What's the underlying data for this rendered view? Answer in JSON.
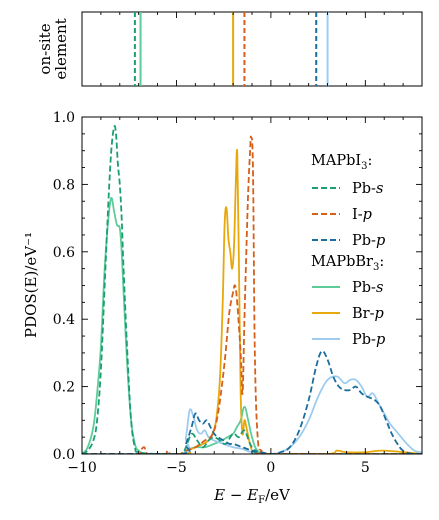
{
  "chart_data": {
    "type": "line",
    "colors": {
      "mapi_pbs": "#1a9e74",
      "mapi_ip": "#d4601b",
      "mapi_pbp": "#1b6d9e",
      "mapb_pbs": "#5dcc98",
      "mapb_brp": "#e8a70c",
      "mapb_pbp": "#9dccf0"
    },
    "top_panel": {
      "ylabel_line1": "on-site",
      "ylabel_line2": "element",
      "xlim": [
        -10,
        8
      ],
      "lines": [
        {
          "x": -7.2,
          "style": "dashed",
          "color_key": "mapi_pbs"
        },
        {
          "x": -6.9,
          "style": "solid",
          "color_key": "mapb_pbs"
        },
        {
          "x": -2.0,
          "style": "solid",
          "color_key": "mapb_brp"
        },
        {
          "x": -1.4,
          "style": "dashed",
          "color_key": "mapi_ip"
        },
        {
          "x": 2.4,
          "style": "dashed",
          "color_key": "mapi_pbp"
        },
        {
          "x": 3.0,
          "style": "solid",
          "color_key": "mapb_pbp"
        }
      ]
    },
    "main_panel": {
      "xlabel": "E − E_F/eV",
      "ylabel": "PDOS(E)/eV⁻¹",
      "xlim": [
        -10,
        8
      ],
      "ylim": [
        0,
        1.0
      ],
      "xticks": [
        -10,
        -5,
        0,
        5
      ],
      "yticks": [
        0.0,
        0.2,
        0.4,
        0.6,
        0.8,
        1.0
      ],
      "xtick_labels": [
        "−10",
        "−5",
        "0",
        "5"
      ],
      "ytick_labels": [
        "0.0",
        "0.2",
        "0.4",
        "0.6",
        "0.8",
        "1.0"
      ]
    },
    "legend": {
      "group1_title": "MAPbI",
      "group1_sub": "3",
      "group2_title": "MAPbBr",
      "group2_sub": "3",
      "items1": [
        {
          "label_main": "Pb-",
          "label_it": "s",
          "style": "dashed",
          "color_key": "mapi_pbs"
        },
        {
          "label_main": "I-",
          "label_it": "p",
          "style": "dashed",
          "color_key": "mapi_ip"
        },
        {
          "label_main": "Pb-",
          "label_it": "p",
          "style": "dashed",
          "color_key": "mapi_pbp"
        }
      ],
      "items2": [
        {
          "label_main": "Pb-",
          "label_it": "s",
          "style": "solid",
          "color_key": "mapb_pbs"
        },
        {
          "label_main": "Br-",
          "label_it": "p",
          "style": "solid",
          "color_key": "mapb_brp"
        },
        {
          "label_main": "Pb-",
          "label_it": "p",
          "style": "solid",
          "color_key": "mapb_pbp"
        }
      ]
    },
    "series": [
      {
        "name": "MAPbI3 Pb-s",
        "style": "dashed",
        "color_key": "mapi_pbs",
        "points": [
          [
            -10,
            0
          ],
          [
            -9.7,
            0.01
          ],
          [
            -9.4,
            0.04
          ],
          [
            -9.2,
            0.1
          ],
          [
            -9.0,
            0.25
          ],
          [
            -8.8,
            0.5
          ],
          [
            -8.6,
            0.75
          ],
          [
            -8.45,
            0.9
          ],
          [
            -8.3,
            0.97
          ],
          [
            -8.2,
            0.95
          ],
          [
            -8.1,
            0.86
          ],
          [
            -8.0,
            0.8
          ],
          [
            -7.9,
            0.7
          ],
          [
            -7.8,
            0.55
          ],
          [
            -7.6,
            0.3
          ],
          [
            -7.4,
            0.1
          ],
          [
            -7.2,
            0.02
          ],
          [
            -7.0,
            0.005
          ],
          [
            -6.0,
            0
          ],
          [
            -4.8,
            0
          ],
          [
            -4.5,
            0.02
          ],
          [
            -4.2,
            0.06
          ],
          [
            -3.9,
            0.04
          ],
          [
            -3.6,
            0.02
          ],
          [
            -3.3,
            0.04
          ],
          [
            -3.0,
            0.05
          ],
          [
            -2.7,
            0.04
          ],
          [
            -2.4,
            0.03
          ],
          [
            -2.0,
            0.06
          ],
          [
            -1.7,
            0.05
          ],
          [
            -1.4,
            0.07
          ],
          [
            -1.1,
            0.03
          ],
          [
            -0.8,
            0.01
          ],
          [
            0,
            0
          ],
          [
            8,
            0
          ]
        ]
      },
      {
        "name": "MAPbI3 I-p",
        "style": "dashed",
        "color_key": "mapi_ip",
        "points": [
          [
            -10,
            0
          ],
          [
            -8,
            0
          ],
          [
            -7.0,
            0
          ],
          [
            -6.9,
            0.01
          ],
          [
            -6.7,
            0.02
          ],
          [
            -6.5,
            0
          ],
          [
            -5.6,
            0
          ],
          [
            -5.5,
            0.01
          ],
          [
            -5.3,
            0
          ],
          [
            -4.8,
            0
          ],
          [
            -4.5,
            0.01
          ],
          [
            -4.0,
            0.02
          ],
          [
            -3.5,
            0.04
          ],
          [
            -3.2,
            0.05
          ],
          [
            -3.0,
            0.07
          ],
          [
            -2.8,
            0.12
          ],
          [
            -2.6,
            0.2
          ],
          [
            -2.4,
            0.3
          ],
          [
            -2.2,
            0.42
          ],
          [
            -2.0,
            0.48
          ],
          [
            -1.9,
            0.5
          ],
          [
            -1.8,
            0.46
          ],
          [
            -1.6,
            0.3
          ],
          [
            -1.5,
            0.18
          ],
          [
            -1.4,
            0.4
          ],
          [
            -1.3,
            0.6
          ],
          [
            -1.2,
            0.78
          ],
          [
            -1.1,
            0.9
          ],
          [
            -1.05,
            0.94
          ],
          [
            -0.95,
            0.85
          ],
          [
            -0.85,
            0.3
          ],
          [
            -0.7,
            0.05
          ],
          [
            -0.5,
            0.01
          ],
          [
            0,
            0
          ],
          [
            8,
            0
          ]
        ]
      },
      {
        "name": "MAPbI3 Pb-p",
        "style": "dashed",
        "color_key": "mapi_pbp",
        "points": [
          [
            -10,
            0
          ],
          [
            -4.8,
            0
          ],
          [
            -4.5,
            0.03
          ],
          [
            -4.2,
            0.08
          ],
          [
            -4.0,
            0.12
          ],
          [
            -3.8,
            0.1
          ],
          [
            -3.6,
            0.09
          ],
          [
            -3.4,
            0.1
          ],
          [
            -3.2,
            0.08
          ],
          [
            -3.0,
            0.06
          ],
          [
            -2.8,
            0.05
          ],
          [
            -2.5,
            0.04
          ],
          [
            -2.2,
            0.03
          ],
          [
            -2.0,
            0.03
          ],
          [
            -1.5,
            0.02
          ],
          [
            -1.0,
            0.01
          ],
          [
            -0.5,
            0.005
          ],
          [
            0,
            0
          ],
          [
            0.5,
            0.005
          ],
          [
            1.0,
            0.02
          ],
          [
            1.5,
            0.07
          ],
          [
            2.0,
            0.16
          ],
          [
            2.4,
            0.26
          ],
          [
            2.7,
            0.305
          ],
          [
            3.0,
            0.28
          ],
          [
            3.3,
            0.23
          ],
          [
            3.6,
            0.2
          ],
          [
            3.9,
            0.19
          ],
          [
            4.2,
            0.19
          ],
          [
            4.5,
            0.2
          ],
          [
            4.8,
            0.18
          ],
          [
            5.1,
            0.17
          ],
          [
            5.5,
            0.16
          ],
          [
            5.8,
            0.14
          ],
          [
            6.1,
            0.1
          ],
          [
            6.4,
            0.06
          ],
          [
            6.7,
            0.03
          ],
          [
            7.0,
            0.01
          ],
          [
            7.5,
            0
          ],
          [
            8,
            0
          ]
        ]
      },
      {
        "name": "MAPbBr3 Pb-s",
        "style": "solid",
        "color_key": "mapb_pbs",
        "points": [
          [
            -10,
            0
          ],
          [
            -9.7,
            0.02
          ],
          [
            -9.4,
            0.08
          ],
          [
            -9.2,
            0.18
          ],
          [
            -9.0,
            0.32
          ],
          [
            -8.8,
            0.55
          ],
          [
            -8.6,
            0.7
          ],
          [
            -8.45,
            0.76
          ],
          [
            -8.3,
            0.72
          ],
          [
            -8.15,
            0.68
          ],
          [
            -8.0,
            0.67
          ],
          [
            -7.9,
            0.6
          ],
          [
            -7.8,
            0.48
          ],
          [
            -7.6,
            0.26
          ],
          [
            -7.4,
            0.1
          ],
          [
            -7.2,
            0.03
          ],
          [
            -7.0,
            0.01
          ],
          [
            -6.5,
            0
          ],
          [
            -4.8,
            0
          ],
          [
            -4.5,
            0.01
          ],
          [
            -4.0,
            0.02
          ],
          [
            -3.5,
            0.02
          ],
          [
            -3.0,
            0.03
          ],
          [
            -2.6,
            0.04
          ],
          [
            -2.3,
            0.05
          ],
          [
            -2.0,
            0.06
          ],
          [
            -1.8,
            0.08
          ],
          [
            -1.6,
            0.1
          ],
          [
            -1.4,
            0.14
          ],
          [
            -1.2,
            0.1
          ],
          [
            -1.0,
            0.05
          ],
          [
            -0.7,
            0.01
          ],
          [
            0,
            0
          ],
          [
            8,
            0
          ]
        ]
      },
      {
        "name": "MAPbBr3 Br-p",
        "style": "solid",
        "color_key": "mapb_brp",
        "points": [
          [
            -10,
            0
          ],
          [
            -4.8,
            0
          ],
          [
            -4.4,
            0.01
          ],
          [
            -4.0,
            0.02
          ],
          [
            -3.6,
            0.03
          ],
          [
            -3.3,
            0.04
          ],
          [
            -3.1,
            0.06
          ],
          [
            -2.9,
            0.1
          ],
          [
            -2.7,
            0.22
          ],
          [
            -2.55,
            0.45
          ],
          [
            -2.45,
            0.68
          ],
          [
            -2.35,
            0.73
          ],
          [
            -2.25,
            0.64
          ],
          [
            -2.15,
            0.6
          ],
          [
            -2.05,
            0.55
          ],
          [
            -1.95,
            0.62
          ],
          [
            -1.85,
            0.82
          ],
          [
            -1.78,
            0.89
          ],
          [
            -1.7,
            0.6
          ],
          [
            -1.6,
            0.18
          ],
          [
            -1.5,
            0.06
          ],
          [
            -1.4,
            0.1
          ],
          [
            -1.3,
            0.08
          ],
          [
            -1.15,
            0.04
          ],
          [
            -1.0,
            0.01
          ],
          [
            -0.8,
            0
          ],
          [
            0,
            0
          ],
          [
            3,
            0
          ],
          [
            3.5,
            0.01
          ],
          [
            4,
            0.005
          ],
          [
            5,
            0.005
          ],
          [
            6,
            0.01
          ],
          [
            8,
            0
          ]
        ]
      },
      {
        "name": "MAPbBr3 Pb-p",
        "style": "solid",
        "color_key": "mapb_pbp",
        "points": [
          [
            -10,
            0
          ],
          [
            -4.8,
            0
          ],
          [
            -4.5,
            0.05
          ],
          [
            -4.3,
            0.13
          ],
          [
            -4.1,
            0.11
          ],
          [
            -3.9,
            0.07
          ],
          [
            -3.7,
            0.06
          ],
          [
            -3.5,
            0.07
          ],
          [
            -3.3,
            0.05
          ],
          [
            -3.0,
            0.04
          ],
          [
            -2.5,
            0.03
          ],
          [
            -2.0,
            0.02
          ],
          [
            -1.5,
            0.015
          ],
          [
            -1.0,
            0.005
          ],
          [
            0,
            0
          ],
          [
            0.5,
            0.005
          ],
          [
            1.0,
            0.02
          ],
          [
            1.5,
            0.05
          ],
          [
            2.0,
            0.1
          ],
          [
            2.5,
            0.17
          ],
          [
            3.0,
            0.22
          ],
          [
            3.5,
            0.23
          ],
          [
            3.9,
            0.21
          ],
          [
            4.2,
            0.22
          ],
          [
            4.5,
            0.22
          ],
          [
            4.8,
            0.2
          ],
          [
            5.1,
            0.17
          ],
          [
            5.4,
            0.18
          ],
          [
            5.7,
            0.15
          ],
          [
            6.0,
            0.12
          ],
          [
            6.3,
            0.09
          ],
          [
            6.6,
            0.07
          ],
          [
            6.9,
            0.05
          ],
          [
            7.2,
            0.03
          ],
          [
            7.6,
            0.01
          ],
          [
            8,
            0.005
          ]
        ]
      }
    ]
  }
}
